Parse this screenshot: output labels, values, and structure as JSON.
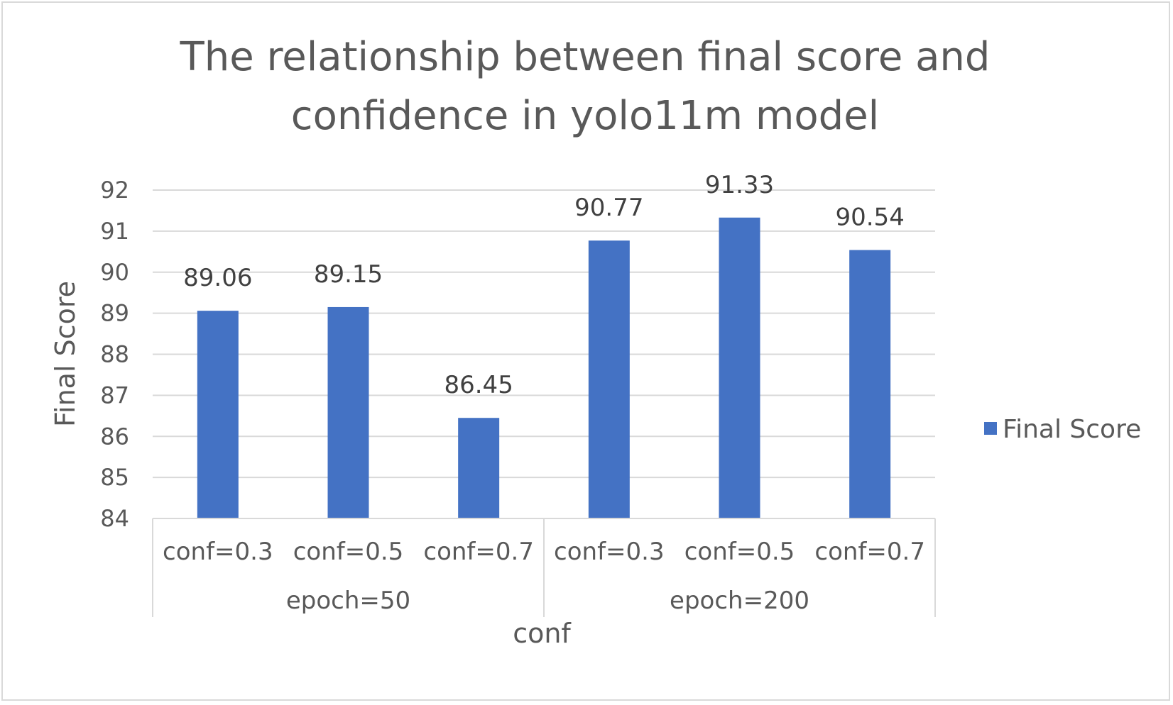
{
  "chart_data": {
    "type": "bar",
    "title_lines": [
      "The relationship between final score and",
      "confidence in yolo11m model"
    ],
    "xlabel": "conf",
    "ylabel": "Final Score",
    "ylim": [
      84,
      92
    ],
    "yticks": [
      "84",
      "85",
      "86",
      "87",
      "88",
      "89",
      "90",
      "91",
      "92"
    ],
    "grid": true,
    "legend_position": "right",
    "groups": [
      {
        "label": "epoch=50",
        "categories": [
          "conf=0.3",
          "conf=0.5",
          "conf=0.7"
        ]
      },
      {
        "label": "epoch=200",
        "categories": [
          "conf=0.3",
          "conf=0.5",
          "conf=0.7"
        ]
      }
    ],
    "categories": [
      "conf=0.3",
      "conf=0.5",
      "conf=0.7",
      "conf=0.3",
      "conf=0.5",
      "conf=0.7"
    ],
    "series": [
      {
        "name": "Final Score",
        "values": [
          89.06,
          89.15,
          86.45,
          90.77,
          91.33,
          90.54
        ],
        "labels": [
          "89.06",
          "89.15",
          "86.45",
          "90.77",
          "91.33",
          "90.54"
        ],
        "color": "#4472c4"
      }
    ],
    "colors": {
      "bar": "#4472c4",
      "grid": "#d9d9d9",
      "text": "#595959",
      "data_label": "#404040"
    }
  }
}
